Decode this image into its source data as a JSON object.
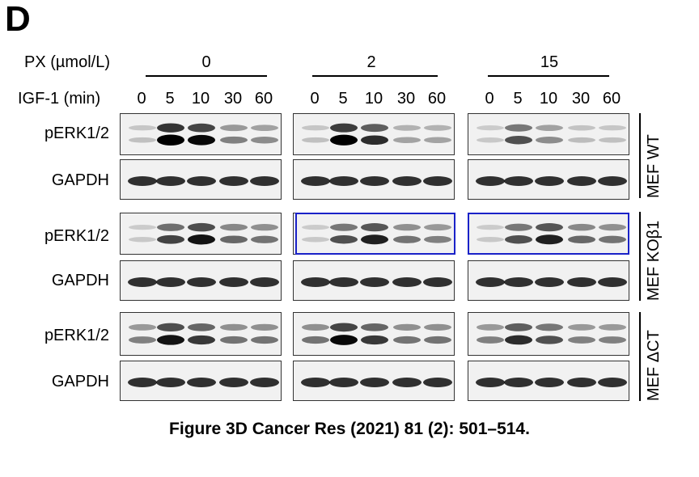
{
  "panel_letter": "D",
  "header": {
    "px_label": "PX (µmol/L)",
    "igf_label": "IGF-1 (min)"
  },
  "px_groups": [
    "0",
    "2",
    "15"
  ],
  "time_lanes": [
    "0",
    "5",
    "10",
    "30",
    "60"
  ],
  "row_labels": [
    "pERK1/2",
    "GAPDH",
    "pERK1/2",
    "GAPDH",
    "pERK1/2",
    "GAPDH"
  ],
  "cell_lines": [
    "MEF WT",
    "MEF KOβ1",
    "MEF ΔCT"
  ],
  "highlight_color": "#1a22c8",
  "band_intensity": {
    "pERK_WT": [
      [
        0.08,
        0.95,
        0.85,
        0.35,
        0.3
      ],
      [
        0.08,
        0.9,
        0.7,
        0.2,
        0.2
      ],
      [
        0.05,
        0.55,
        0.3,
        0.1,
        0.08
      ]
    ],
    "pERK_KO": [
      [
        0.05,
        0.6,
        0.8,
        0.45,
        0.4
      ],
      [
        0.05,
        0.55,
        0.75,
        0.4,
        0.35
      ],
      [
        0.05,
        0.55,
        0.75,
        0.45,
        0.4
      ]
    ],
    "pERK_CT": [
      [
        0.35,
        0.8,
        0.65,
        0.4,
        0.4
      ],
      [
        0.4,
        0.85,
        0.65,
        0.4,
        0.4
      ],
      [
        0.35,
        0.7,
        0.55,
        0.35,
        0.35
      ]
    ],
    "GAPDH": 0.8
  },
  "caption": "Figure 3D Cancer Res (2021) 81 (2): 501–514."
}
